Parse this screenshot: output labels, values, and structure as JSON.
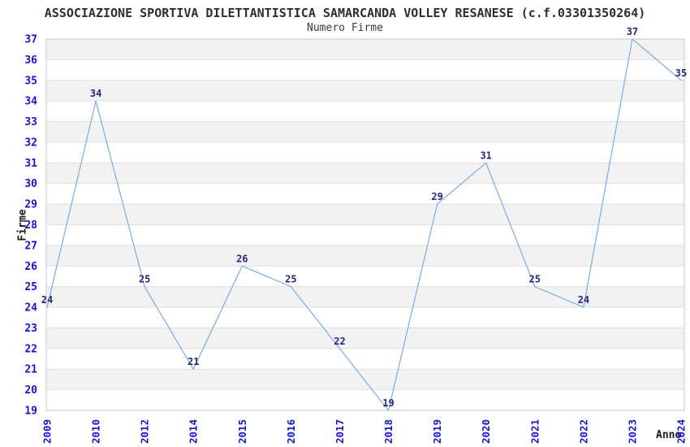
{
  "chart_data": {
    "type": "line",
    "title": "ASSOCIAZIONE SPORTIVA DILETTANTISTICA SAMARCANDA VOLLEY RESANESE (c.f.03301350264)",
    "subtitle": "Numero Firme",
    "xlabel": "Anno",
    "ylabel": "Firme",
    "categories": [
      "2009",
      "2010",
      "2012",
      "2014",
      "2015",
      "2016",
      "2017",
      "2018",
      "2019",
      "2020",
      "2021",
      "2022",
      "2023",
      "2024"
    ],
    "values": [
      24,
      34,
      25,
      21,
      26,
      25,
      22,
      19,
      29,
      31,
      25,
      24,
      37,
      35
    ],
    "ylim": [
      19,
      37
    ],
    "ytick_step": 1,
    "grid": "alternating-horizontal-bands",
    "legend": "none",
    "point_labels_shown": true,
    "colors": {
      "line": "#7FB2E5",
      "tick_labels": "#1414D6",
      "point_labels": "#26267A",
      "band_fill": "#F2F2F2",
      "grid_line": "#E0E0E0",
      "plot_border": "#C9C9C9",
      "title_text": "#2E2E2E"
    }
  }
}
